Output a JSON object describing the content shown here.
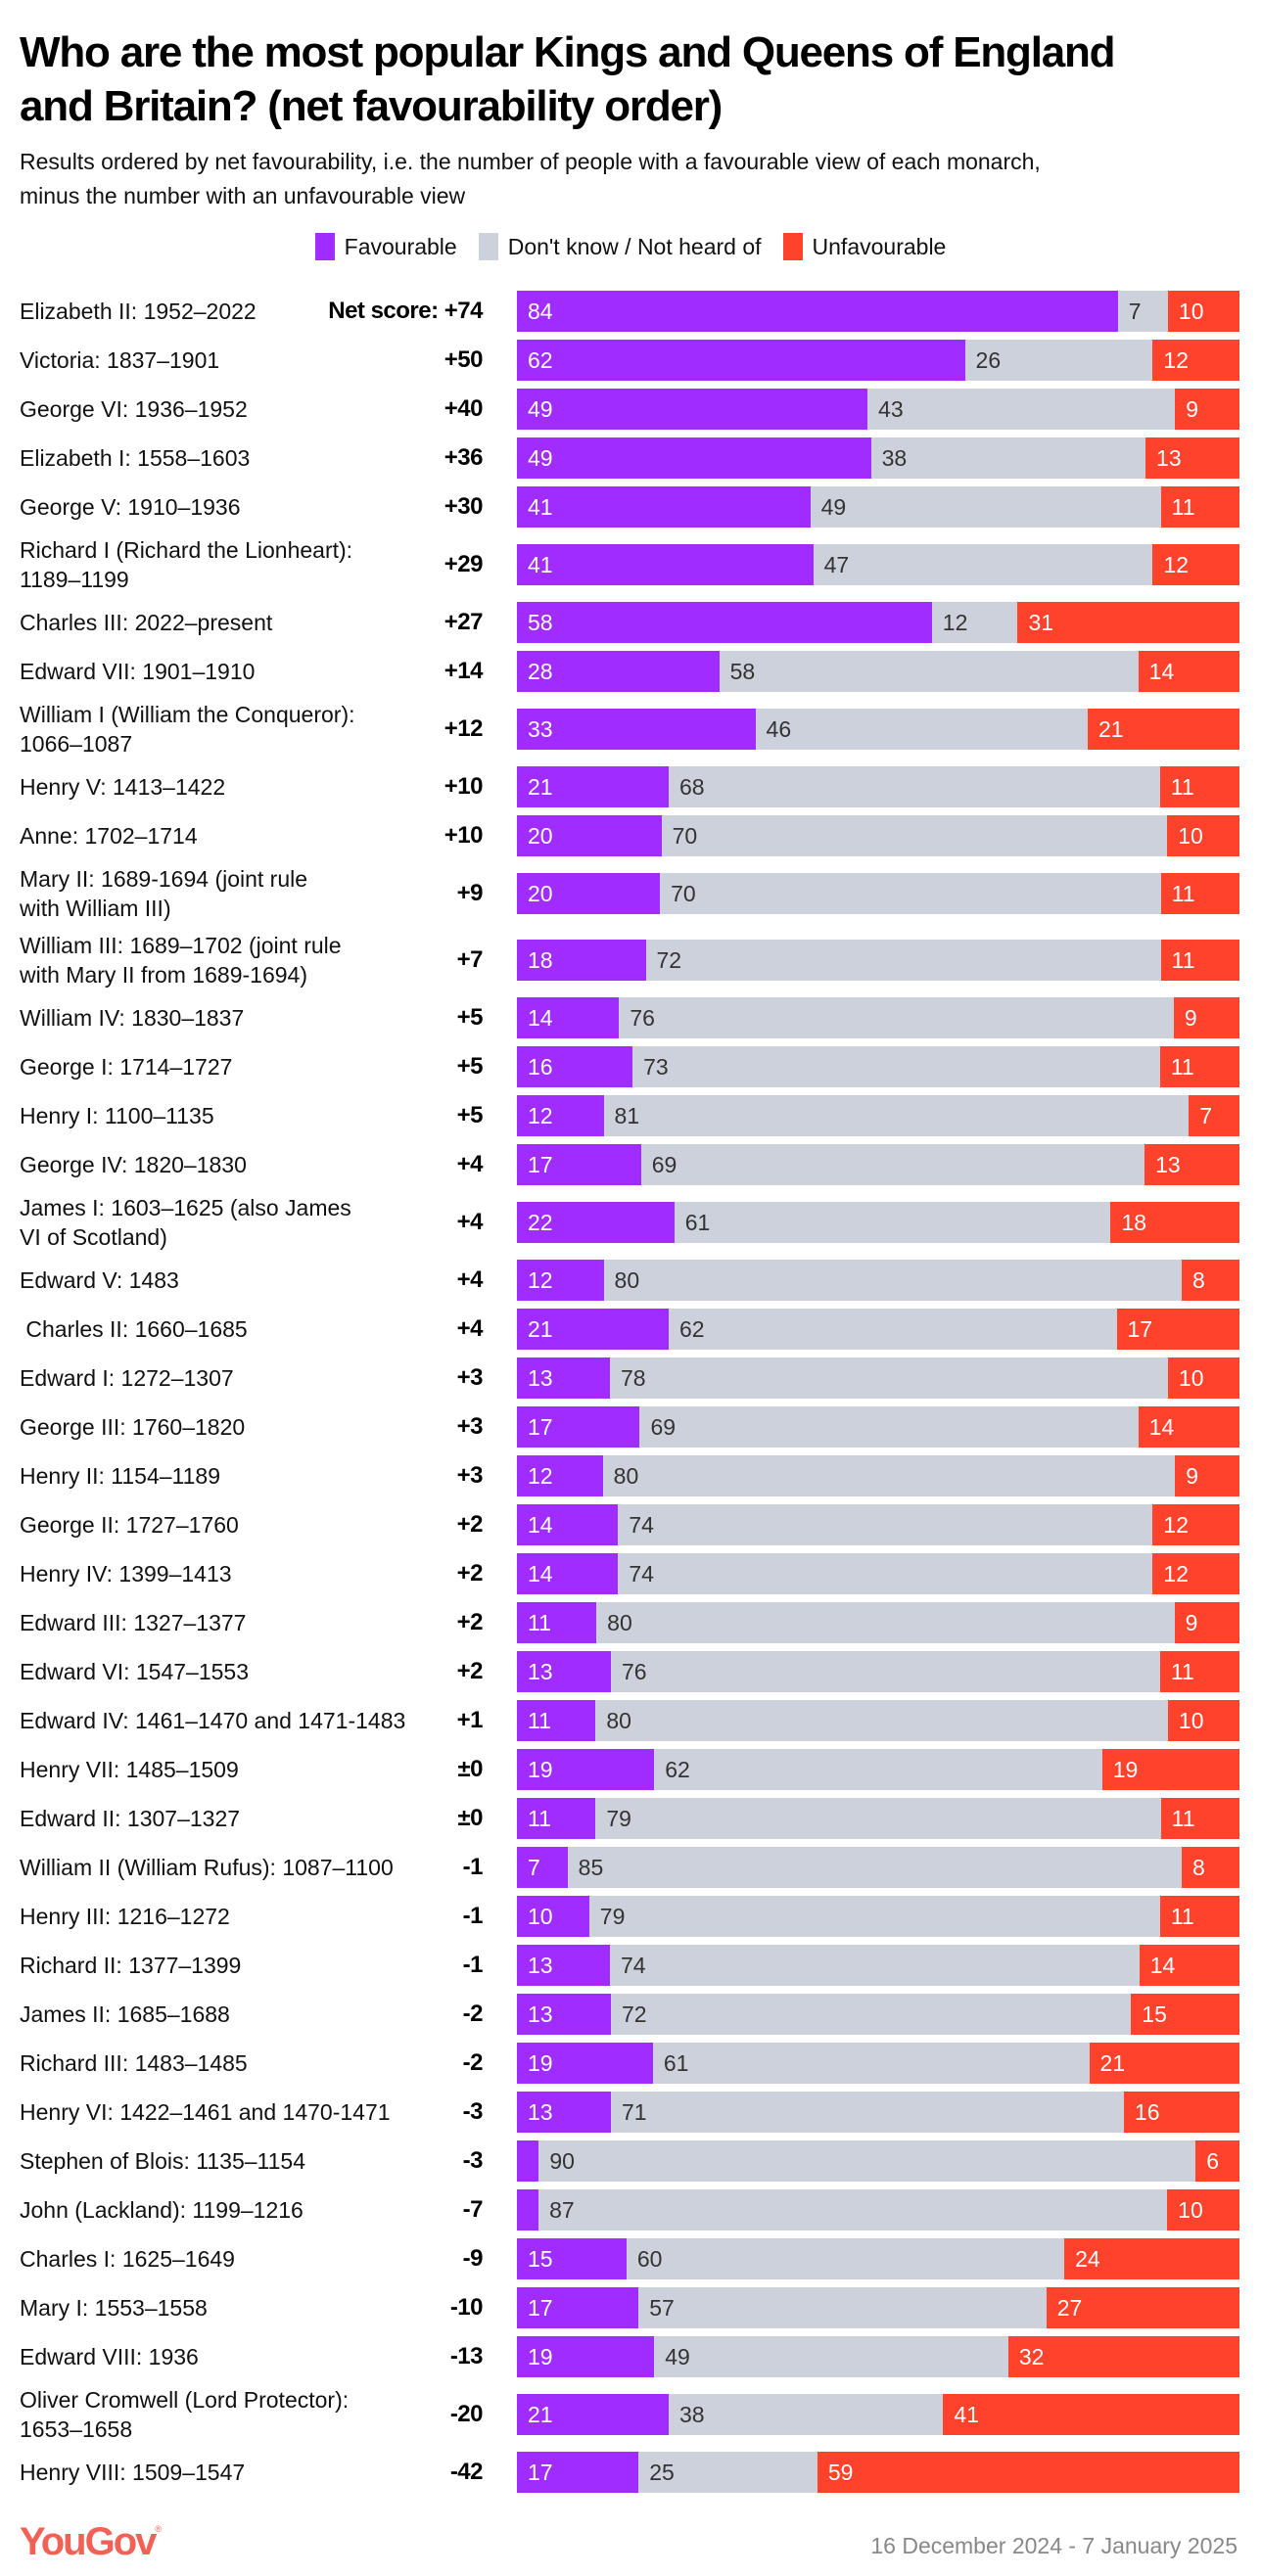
{
  "header": {
    "title_lines": [
      "Who are the most popular Kings and Queens of England",
      "and Britain? (net favourability order)"
    ],
    "subtitle_lines": [
      "Results ordered by net favourability, i.e. the number of people with a favourable view of each monarch,",
      "minus the number with an unfavourable view"
    ]
  },
  "legend": [
    {
      "label": "Favourable",
      "color": "#a02cff"
    },
    {
      "label": "Don't know / Not heard of",
      "color": "#cdd1dc"
    },
    {
      "label": "Unfavourable",
      "color": "#ff422c"
    }
  ],
  "footer": {
    "logo": "YouGov",
    "logo_mark": "®",
    "date": "16 December 2024 - 7 January 2025"
  },
  "chart_data": {
    "type": "bar",
    "orientation": "horizontal-stacked",
    "title": "Who are the most popular Kings and Queens of England and Britain? (net favourability order)",
    "subtitle": "Results ordered by net favourability, i.e. the number of people with a favourable view of each monarch, minus the number with an unfavourable view",
    "xlabel": "",
    "ylabel": "",
    "xlim": [
      0,
      100
    ],
    "unit": "%",
    "legend_position": "top-center",
    "net_score_prefix": "Net score: ",
    "series_names": [
      "Favourable",
      "Don't know / Not heard of",
      "Unfavourable"
    ],
    "rows": [
      {
        "label": [
          "Elizabeth II: 1952–2022"
        ],
        "net": "+74",
        "fav": 84,
        "dk": 7,
        "unf": 10,
        "show_prefix": true
      },
      {
        "label": [
          "Victoria: 1837–1901"
        ],
        "net": "+50",
        "fav": 62,
        "dk": 26,
        "unf": 12
      },
      {
        "label": [
          "George VI: 1936–1952"
        ],
        "net": "+40",
        "fav": 49,
        "dk": 43,
        "unf": 9
      },
      {
        "label": [
          "Elizabeth I: 1558–1603"
        ],
        "net": "+36",
        "fav": 49,
        "dk": 38,
        "unf": 13
      },
      {
        "label": [
          "George V: 1910–1936"
        ],
        "net": "+30",
        "fav": 41,
        "dk": 49,
        "unf": 11
      },
      {
        "label": [
          "Richard I (Richard the Lionheart):",
          "1189–1199"
        ],
        "net": "+29",
        "fav": 41,
        "dk": 47,
        "unf": 12
      },
      {
        "label": [
          "Charles III: 2022–present"
        ],
        "net": "+27",
        "fav": 58,
        "dk": 12,
        "unf": 31
      },
      {
        "label": [
          "Edward VII: 1901–1910"
        ],
        "net": "+14",
        "fav": 28,
        "dk": 58,
        "unf": 14
      },
      {
        "label": [
          "William I (William the Conqueror):",
          "1066–1087"
        ],
        "net": "+12",
        "fav": 33,
        "dk": 46,
        "unf": 21
      },
      {
        "label": [
          "Henry V: 1413–1422"
        ],
        "net": "+10",
        "fav": 21,
        "dk": 68,
        "unf": 11
      },
      {
        "label": [
          "Anne: 1702–1714"
        ],
        "net": "+10",
        "fav": 20,
        "dk": 70,
        "unf": 10
      },
      {
        "label": [
          "Mary II: 1689-1694 (joint rule",
          "with William III)"
        ],
        "net": "+9",
        "fav": 20,
        "dk": 70,
        "unf": 11
      },
      {
        "label": [
          "William III: 1689–1702 (joint rule",
          "with Mary II from 1689-1694)"
        ],
        "net": "+7",
        "fav": 18,
        "dk": 72,
        "unf": 11
      },
      {
        "label": [
          "William IV: 1830–1837"
        ],
        "net": "+5",
        "fav": 14,
        "dk": 76,
        "unf": 9
      },
      {
        "label": [
          "George I: 1714–1727"
        ],
        "net": "+5",
        "fav": 16,
        "dk": 73,
        "unf": 11
      },
      {
        "label": [
          "Henry I: 1100–1135"
        ],
        "net": "+5",
        "fav": 12,
        "dk": 81,
        "unf": 7
      },
      {
        "label": [
          "George IV: 1820–1830"
        ],
        "net": "+4",
        "fav": 17,
        "dk": 69,
        "unf": 13
      },
      {
        "label": [
          "James I: 1603–1625 (also James",
          "VI of Scotland)"
        ],
        "net": "+4",
        "fav": 22,
        "dk": 61,
        "unf": 18
      },
      {
        "label": [
          "Edward V: 1483"
        ],
        "net": "+4",
        "fav": 12,
        "dk": 80,
        "unf": 8
      },
      {
        "label": [
          " Charles II: 1660–1685"
        ],
        "net": "+4",
        "fav": 21,
        "dk": 62,
        "unf": 17
      },
      {
        "label": [
          "Edward I: 1272–1307"
        ],
        "net": "+3",
        "fav": 13,
        "dk": 78,
        "unf": 10
      },
      {
        "label": [
          "George III: 1760–1820"
        ],
        "net": "+3",
        "fav": 17,
        "dk": 69,
        "unf": 14
      },
      {
        "label": [
          "Henry II: 1154–1189"
        ],
        "net": "+3",
        "fav": 12,
        "dk": 80,
        "unf": 9
      },
      {
        "label": [
          "George II: 1727–1760"
        ],
        "net": "+2",
        "fav": 14,
        "dk": 74,
        "unf": 12
      },
      {
        "label": [
          "Henry IV: 1399–1413"
        ],
        "net": "+2",
        "fav": 14,
        "dk": 74,
        "unf": 12
      },
      {
        "label": [
          "Edward III: 1327–1377"
        ],
        "net": "+2",
        "fav": 11,
        "dk": 80,
        "unf": 9
      },
      {
        "label": [
          "Edward VI: 1547–1553"
        ],
        "net": "+2",
        "fav": 13,
        "dk": 76,
        "unf": 11
      },
      {
        "label": [
          "Edward IV: 1461–1470 and 1471-1483"
        ],
        "net": "+1",
        "fav": 11,
        "dk": 80,
        "unf": 10
      },
      {
        "label": [
          "Henry VII: 1485–1509"
        ],
        "net": "±0",
        "fav": 19,
        "dk": 62,
        "unf": 19
      },
      {
        "label": [
          "Edward II: 1307–1327"
        ],
        "net": "±0",
        "fav": 11,
        "dk": 79,
        "unf": 11
      },
      {
        "label": [
          "William II (William Rufus): 1087–1100"
        ],
        "net": "-1",
        "fav": 7,
        "dk": 85,
        "unf": 8
      },
      {
        "label": [
          "Henry III: 1216–1272"
        ],
        "net": "-1",
        "fav": 10,
        "dk": 79,
        "unf": 11
      },
      {
        "label": [
          "Richard II: 1377–1399"
        ],
        "net": "-1",
        "fav": 13,
        "dk": 74,
        "unf": 14
      },
      {
        "label": [
          "James II: 1685–1688"
        ],
        "net": "-2",
        "fav": 13,
        "dk": 72,
        "unf": 15
      },
      {
        "label": [
          "Richard III: 1483–1485"
        ],
        "net": "-2",
        "fav": 19,
        "dk": 61,
        "unf": 21
      },
      {
        "label": [
          "Henry VI: 1422–1461 and 1470-1471"
        ],
        "net": "-3",
        "fav": 13,
        "dk": 71,
        "unf": 16
      },
      {
        "label": [
          "Stephen of Blois: 1135–1154"
        ],
        "net": "-3",
        "fav": 3,
        "dk": 90,
        "unf": 6,
        "hide_fav_label": true
      },
      {
        "label": [
          "John (Lackland): 1199–1216"
        ],
        "net": "-7",
        "fav": 3,
        "dk": 87,
        "unf": 10,
        "hide_fav_label": true
      },
      {
        "label": [
          "Charles I: 1625–1649"
        ],
        "net": "-9",
        "fav": 15,
        "dk": 60,
        "unf": 24
      },
      {
        "label": [
          "Mary I: 1553–1558"
        ],
        "net": "-10",
        "fav": 17,
        "dk": 57,
        "unf": 27
      },
      {
        "label": [
          "Edward VIII: 1936"
        ],
        "net": "-13",
        "fav": 19,
        "dk": 49,
        "unf": 32
      },
      {
        "label": [
          "Oliver Cromwell (Lord Protector):",
          "1653–1658"
        ],
        "net": "-20",
        "fav": 21,
        "dk": 38,
        "unf": 41
      },
      {
        "label": [
          "Henry VIII: 1509–1547"
        ],
        "net": "-42",
        "fav": 17,
        "dk": 25,
        "unf": 59
      }
    ]
  }
}
